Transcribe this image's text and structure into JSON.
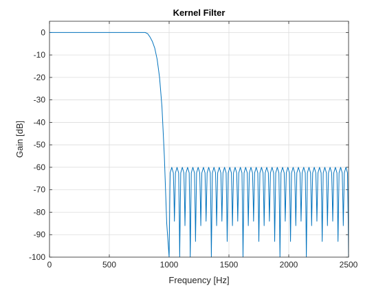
{
  "chart_data": {
    "type": "line",
    "title": "Kernel Filter",
    "xlabel": "Frequency [Hz]",
    "ylabel": "Gain [dB]",
    "xlim": [
      0,
      2500
    ],
    "ylim": [
      -100,
      5
    ],
    "xticks": [
      0,
      500,
      1000,
      1500,
      2000,
      2500
    ],
    "yticks": [
      0,
      -10,
      -20,
      -30,
      -40,
      -50,
      -60,
      -70,
      -80,
      -90,
      -100
    ],
    "grid": true,
    "series": [
      {
        "color": "#0072BD",
        "passband": {
          "x_range": [
            0,
            800
          ],
          "gain": 0
        },
        "transition": {
          "x": [
            800,
            820,
            840,
            860,
            880,
            900,
            920,
            940,
            960,
            980,
            1000
          ],
          "y": [
            0,
            -0.5,
            -2,
            -4,
            -7,
            -12,
            -20,
            -33,
            -55,
            -85,
            -100
          ]
        },
        "stopband": {
          "x_range": [
            1000,
            2500
          ],
          "lobe_peak_gain": -60,
          "lobe_count": 34,
          "null_x": [
            1020,
            1080,
            1180,
            1350,
            1620,
            1930,
            2140,
            2480
          ],
          "null_gain": -100,
          "other_null_gain": [
            -84,
            -93,
            -86
          ]
        }
      }
    ]
  }
}
